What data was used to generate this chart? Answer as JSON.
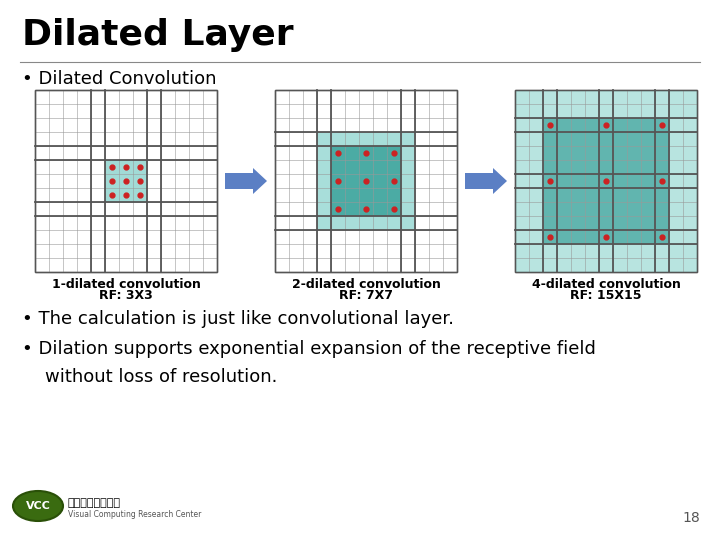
{
  "title": "Dilated Layer",
  "bullet1": "Dilated Convolution",
  "bullet2": "The calculation is just like convolutional layer.",
  "bullet3": "Dilation supports exponential expansion of the receptive field",
  "bullet3b": "without loss of resolution.",
  "page_num": "18",
  "grid1_label1": "1-dilated convolution",
  "grid1_label2": "RF: 3X3",
  "grid2_label1": "2-dilated convolution",
  "grid2_label2": "RF: 7X7",
  "grid3_label1": "4-dilated convolution",
  "grid3_label2": "RF: 15X15",
  "bg_color": "#ffffff",
  "grid_color": "#999999",
  "teal_light": "#62c4bc",
  "teal_dark": "#1a9088",
  "dot_color": "#cc2222",
  "arrow_color": "#5b7fc4",
  "title_fontsize": 26,
  "body_fontsize": 13,
  "label_fontsize": 9
}
